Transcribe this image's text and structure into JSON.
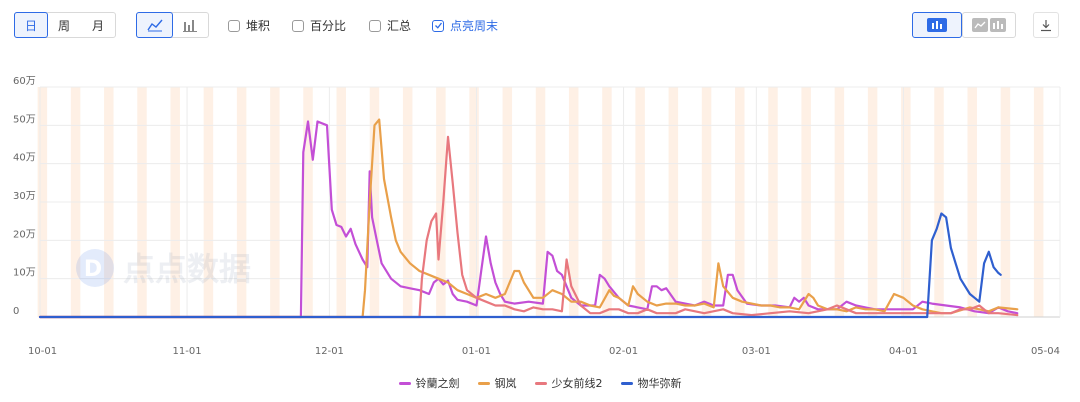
{
  "toolbar": {
    "period": [
      "日",
      "周",
      "月"
    ],
    "checkboxes": [
      {
        "label": "堆积",
        "checked": false
      },
      {
        "label": "百分比",
        "checked": false
      },
      {
        "label": "汇总",
        "checked": false
      },
      {
        "label": "点亮周末",
        "checked": true
      }
    ],
    "accent": "#2e6be6"
  },
  "watermark": "点点数据",
  "chart_data": {
    "type": "line",
    "x_ticks": [
      "10-01",
      "11-01",
      "12-01",
      "01-01",
      "02-01",
      "03-01",
      "04-01",
      "05-04"
    ],
    "y_ticks": [
      "60万",
      "50万",
      "40万",
      "30万",
      "20万",
      "10万",
      "0"
    ],
    "ylim": [
      0,
      60
    ],
    "grid": true,
    "weekend_highlight": true,
    "legend_position": "bottom",
    "series": [
      {
        "name": "铃蘭之劍",
        "color": "#c34fd6",
        "points": [
          [
            0,
            0
          ],
          [
            55,
            0
          ],
          [
            55.5,
            43
          ],
          [
            56.5,
            51
          ],
          [
            57.5,
            41
          ],
          [
            58.5,
            51
          ],
          [
            60.5,
            50
          ],
          [
            61.5,
            28
          ],
          [
            62.5,
            24
          ],
          [
            63.5,
            23.5
          ],
          [
            64.5,
            21
          ],
          [
            65.5,
            23
          ],
          [
            66.5,
            19
          ],
          [
            68,
            15
          ],
          [
            69,
            13
          ],
          [
            69.5,
            38
          ],
          [
            70,
            26
          ],
          [
            71,
            20
          ],
          [
            72,
            14
          ],
          [
            74,
            10
          ],
          [
            76,
            8
          ],
          [
            78,
            7.5
          ],
          [
            80,
            7
          ],
          [
            82,
            6
          ],
          [
            83,
            9
          ],
          [
            84,
            10
          ],
          [
            85,
            8.5
          ],
          [
            86,
            9.5
          ],
          [
            87,
            6
          ],
          [
            88,
            4.5
          ],
          [
            90,
            4
          ],
          [
            92,
            3
          ],
          [
            93,
            12
          ],
          [
            94,
            21
          ],
          [
            95,
            14
          ],
          [
            96,
            9
          ],
          [
            97,
            6
          ],
          [
            98,
            4
          ],
          [
            100,
            3.5
          ],
          [
            103,
            4
          ],
          [
            106,
            3.5
          ],
          [
            107,
            17
          ],
          [
            108,
            16
          ],
          [
            109,
            12
          ],
          [
            110,
            11
          ],
          [
            112,
            5
          ],
          [
            114,
            3
          ],
          [
            117,
            3
          ],
          [
            118,
            11
          ],
          [
            119,
            10
          ],
          [
            120,
            8
          ],
          [
            122,
            5
          ],
          [
            124,
            3
          ],
          [
            126,
            2.5
          ],
          [
            128,
            2
          ],
          [
            129,
            8
          ],
          [
            130,
            8
          ],
          [
            131,
            7
          ],
          [
            132,
            7.5
          ],
          [
            134,
            4
          ],
          [
            136,
            3.5
          ],
          [
            138,
            3
          ],
          [
            140,
            4
          ],
          [
            142,
            3
          ],
          [
            144,
            3
          ],
          [
            145,
            11
          ],
          [
            146,
            11
          ],
          [
            147,
            7
          ],
          [
            149,
            3.5
          ],
          [
            152,
            3
          ],
          [
            155,
            3
          ],
          [
            158,
            2.5
          ],
          [
            159,
            5
          ],
          [
            160,
            4
          ],
          [
            161,
            5
          ],
          [
            162,
            3
          ],
          [
            164,
            2
          ],
          [
            168,
            2
          ],
          [
            170,
            4
          ],
          [
            172,
            3
          ],
          [
            174,
            2.5
          ],
          [
            176,
            2
          ],
          [
            180,
            2
          ],
          [
            184,
            2
          ],
          [
            186,
            4
          ],
          [
            188,
            3.5
          ],
          [
            191,
            3
          ],
          [
            194,
            2.5
          ],
          [
            197,
            1.5
          ],
          [
            200,
            1
          ],
          [
            202,
            2.5
          ],
          [
            204,
            1.5
          ],
          [
            206,
            1
          ]
        ]
      },
      {
        "name": "钢岚",
        "color": "#e9a04a",
        "points": [
          [
            0,
            0
          ],
          [
            68,
            0
          ],
          [
            68.5,
            7
          ],
          [
            69.5,
            30
          ],
          [
            70.5,
            50
          ],
          [
            71.5,
            51.5
          ],
          [
            72.5,
            36
          ],
          [
            74,
            26
          ],
          [
            75,
            20
          ],
          [
            76,
            17
          ],
          [
            78,
            14
          ],
          [
            80,
            12
          ],
          [
            82,
            11
          ],
          [
            84,
            10
          ],
          [
            86,
            9
          ],
          [
            88,
            7
          ],
          [
            90,
            6
          ],
          [
            92,
            5
          ],
          [
            94,
            6
          ],
          [
            96,
            5
          ],
          [
            98,
            6
          ],
          [
            100,
            12
          ],
          [
            101,
            12
          ],
          [
            102,
            9
          ],
          [
            104,
            5
          ],
          [
            106,
            5
          ],
          [
            108,
            7
          ],
          [
            110,
            6
          ],
          [
            112,
            4
          ],
          [
            114,
            4
          ],
          [
            116,
            3
          ],
          [
            118,
            2.5
          ],
          [
            120,
            7
          ],
          [
            121,
            5.5
          ],
          [
            122,
            5
          ],
          [
            124,
            3
          ],
          [
            125,
            8
          ],
          [
            126,
            6
          ],
          [
            128,
            4
          ],
          [
            130,
            3
          ],
          [
            132,
            3.5
          ],
          [
            134,
            3.5
          ],
          [
            136,
            3
          ],
          [
            138,
            3
          ],
          [
            140,
            3.5
          ],
          [
            142,
            2.5
          ],
          [
            143,
            14
          ],
          [
            144,
            8
          ],
          [
            146,
            5
          ],
          [
            148,
            4
          ],
          [
            150,
            3.5
          ],
          [
            152,
            3
          ],
          [
            154,
            3
          ],
          [
            156,
            2.5
          ],
          [
            158,
            2.5
          ],
          [
            160,
            2
          ],
          [
            162,
            6
          ],
          [
            163,
            5
          ],
          [
            164,
            3
          ],
          [
            166,
            2
          ],
          [
            168,
            2
          ],
          [
            170,
            1.5
          ],
          [
            172,
            2.5
          ],
          [
            174,
            2
          ],
          [
            176,
            2
          ],
          [
            178,
            1.5
          ],
          [
            180,
            6
          ],
          [
            182,
            5
          ],
          [
            184,
            3
          ],
          [
            186,
            2
          ],
          [
            188,
            1.5
          ],
          [
            190,
            1
          ],
          [
            192,
            1
          ],
          [
            196,
            2.5
          ],
          [
            198,
            2
          ],
          [
            200,
            1.5
          ],
          [
            202,
            2.5
          ],
          [
            206,
            2
          ]
        ]
      },
      {
        "name": "少女前线2",
        "color": "#e8787e",
        "points": [
          [
            0,
            0
          ],
          [
            80,
            0
          ],
          [
            80.5,
            10
          ],
          [
            81.5,
            20
          ],
          [
            82.5,
            25
          ],
          [
            83.5,
            27
          ],
          [
            84,
            15
          ],
          [
            85,
            30
          ],
          [
            86,
            47
          ],
          [
            87,
            35
          ],
          [
            88,
            22
          ],
          [
            89,
            11
          ],
          [
            90,
            7
          ],
          [
            92,
            5
          ],
          [
            94,
            4
          ],
          [
            96,
            3
          ],
          [
            98,
            3
          ],
          [
            100,
            2
          ],
          [
            102,
            1.5
          ],
          [
            104,
            2.5
          ],
          [
            106,
            2
          ],
          [
            108,
            2
          ],
          [
            110,
            1.5
          ],
          [
            111,
            15
          ],
          [
            112,
            8
          ],
          [
            114,
            3
          ],
          [
            116,
            1
          ],
          [
            118,
            1
          ],
          [
            120,
            2
          ],
          [
            122,
            2
          ],
          [
            124,
            1
          ],
          [
            126,
            1
          ],
          [
            128,
            2
          ],
          [
            130,
            1
          ],
          [
            132,
            1
          ],
          [
            134,
            1
          ],
          [
            136,
            2
          ],
          [
            140,
            1
          ],
          [
            144,
            2
          ],
          [
            146,
            1
          ],
          [
            150,
            0.5
          ],
          [
            154,
            1
          ],
          [
            158,
            1.5
          ],
          [
            162,
            1
          ],
          [
            166,
            2
          ],
          [
            168,
            3
          ],
          [
            170,
            2
          ],
          [
            172,
            1
          ],
          [
            176,
            1
          ],
          [
            180,
            1
          ],
          [
            184,
            1
          ],
          [
            188,
            1
          ],
          [
            192,
            1
          ],
          [
            194,
            2
          ],
          [
            196,
            2
          ],
          [
            198,
            3
          ],
          [
            200,
            1
          ],
          [
            202,
            1
          ],
          [
            206,
            0.5
          ]
        ]
      },
      {
        "name": "物华弥新",
        "color": "#2f5fcf",
        "points": [
          [
            0,
            0
          ],
          [
            187,
            0
          ],
          [
            188,
            20
          ],
          [
            189,
            23
          ],
          [
            190,
            27
          ],
          [
            191,
            26
          ],
          [
            192,
            18
          ],
          [
            193,
            14
          ],
          [
            194,
            10
          ],
          [
            195,
            8
          ],
          [
            196,
            6
          ],
          [
            197,
            5
          ],
          [
            198,
            4
          ],
          [
            199,
            14
          ],
          [
            200,
            17
          ],
          [
            201,
            13
          ],
          [
            202,
            11.5
          ],
          [
            202.5,
            11
          ]
        ]
      }
    ]
  }
}
